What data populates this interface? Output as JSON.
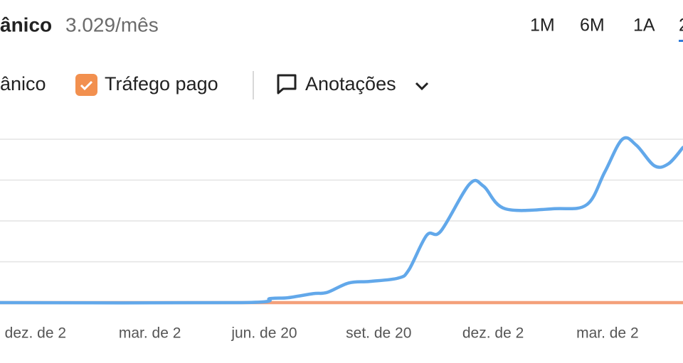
{
  "header": {
    "title": "ânico",
    "value": "3.029/mês",
    "ranges": [
      "1M",
      "6M",
      "1A",
      "2"
    ]
  },
  "legend": {
    "organic": "ânico",
    "paid": "Tráfego pago",
    "annotations": "Anotações"
  },
  "chart_data": {
    "type": "line",
    "xlim": [
      -0.93,
      16.98
    ],
    "ylim": [
      0,
      4
    ],
    "yticks": [
      0,
      1,
      2,
      3,
      4
    ],
    "grid": true,
    "xticks": [
      {
        "value": 0,
        "label": "dez. de 2"
      },
      {
        "value": 3,
        "label": "mar. de 2"
      },
      {
        "value": 6,
        "label": "jun. de 20"
      },
      {
        "value": 9,
        "label": "set. de 20"
      },
      {
        "value": 12,
        "label": "dez. de 2"
      },
      {
        "value": 15,
        "label": "mar. de 2"
      }
    ],
    "series": [
      {
        "name": "Tráfego pago",
        "color": "#f4a07a",
        "x": [
          -0.93,
          16.98
        ],
        "values": [
          0,
          0
        ]
      },
      {
        "name": "ânico",
        "color": "#62a8ea",
        "x": [
          -0.93,
          5.41,
          6.16,
          6.62,
          7.28,
          7.65,
          8.21,
          8.77,
          9.51,
          9.79,
          10.26,
          10.63,
          11.38,
          11.75,
          12.31,
          13.62,
          14.46,
          14.93,
          15.39,
          15.76,
          16.23,
          16.6,
          16.98
        ],
        "values": [
          0,
          0,
          0.1,
          0.12,
          0.22,
          0.25,
          0.48,
          0.52,
          0.6,
          0.8,
          1.65,
          1.75,
          2.9,
          2.85,
          2.3,
          2.3,
          2.4,
          3.2,
          4.0,
          3.85,
          3.35,
          3.4,
          3.8
        ]
      }
    ]
  }
}
